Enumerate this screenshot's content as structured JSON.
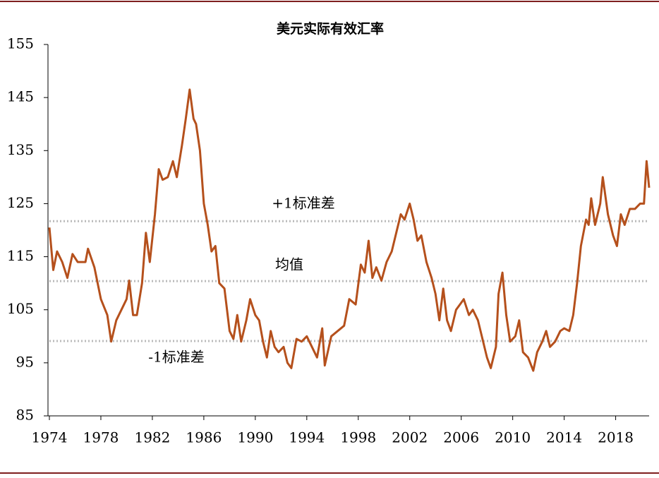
{
  "chart_data": {
    "type": "line",
    "title": "美元实际有效汇率",
    "x": [
      1974.0,
      1974.3,
      1974.6,
      1975.0,
      1975.4,
      1975.8,
      1976.2,
      1976.8,
      1977.0,
      1977.5,
      1978.0,
      1978.5,
      1978.8,
      1979.2,
      1979.6,
      1980.0,
      1980.2,
      1980.5,
      1980.8,
      1981.2,
      1981.5,
      1981.8,
      1982.2,
      1982.5,
      1982.8,
      1983.2,
      1983.6,
      1983.9,
      1984.3,
      1984.6,
      1984.9,
      1985.2,
      1985.4,
      1985.7,
      1986.0,
      1986.3,
      1986.6,
      1986.9,
      1987.2,
      1987.6,
      1988.0,
      1988.3,
      1988.6,
      1988.9,
      1989.3,
      1989.6,
      1990.0,
      1990.3,
      1990.6,
      1990.9,
      1991.2,
      1991.5,
      1991.8,
      1992.2,
      1992.5,
      1992.8,
      1993.2,
      1993.6,
      1994.0,
      1994.4,
      1994.8,
      1995.2,
      1995.4,
      1995.9,
      1996.4,
      1996.9,
      1997.3,
      1997.8,
      1998.2,
      1998.5,
      1998.8,
      1999.1,
      1999.4,
      1999.8,
      2000.2,
      2000.6,
      2000.9,
      2001.3,
      2001.6,
      2002.0,
      2002.3,
      2002.6,
      2002.9,
      2003.3,
      2003.7,
      2004.0,
      2004.3,
      2004.6,
      2004.9,
      2005.2,
      2005.6,
      2005.9,
      2006.2,
      2006.6,
      2006.9,
      2007.3,
      2007.6,
      2008.0,
      2008.3,
      2008.7,
      2008.9,
      2009.2,
      2009.5,
      2009.8,
      2010.2,
      2010.5,
      2010.8,
      2011.2,
      2011.6,
      2011.9,
      2012.3,
      2012.6,
      2012.9,
      2013.3,
      2013.7,
      2014.0,
      2014.4,
      2014.7,
      2015.0,
      2015.3,
      2015.7,
      2015.9,
      2016.1,
      2016.4,
      2016.8,
      2017.0,
      2017.4,
      2017.8,
      2018.1,
      2018.4,
      2018.7,
      2019.1,
      2019.5,
      2019.9,
      2020.2,
      2020.4,
      2020.6
    ],
    "series": [
      {
        "color": "#b5501c",
        "values": [
          120.5,
          112.5,
          116,
          114,
          111,
          115.5,
          114,
          114,
          116.5,
          113,
          107,
          104,
          99,
          103,
          105,
          107,
          110.5,
          104,
          104,
          110,
          119.5,
          114,
          123,
          131.5,
          129.5,
          130,
          133,
          130,
          136,
          141,
          146.5,
          141,
          140,
          135,
          125,
          121,
          116,
          117,
          110,
          109,
          101,
          99.5,
          104,
          99,
          103,
          107,
          104,
          103,
          99,
          96,
          101,
          98,
          97,
          98,
          95,
          94,
          99.5,
          99,
          100,
          98,
          96,
          101.5,
          94.5,
          100,
          101,
          102,
          107,
          106,
          113.5,
          112,
          118,
          111,
          113,
          110.5,
          114,
          116,
          119,
          123,
          122,
          125,
          122,
          118,
          119,
          114,
          111,
          108,
          103,
          109,
          103,
          101,
          105,
          106,
          107,
          104,
          105,
          103,
          100,
          96,
          94,
          98,
          108,
          112,
          104,
          99,
          100,
          103,
          97,
          96,
          93.5,
          97,
          99,
          101,
          98,
          99,
          101,
          101.5,
          101,
          104,
          110,
          117,
          122,
          121,
          126,
          121,
          125,
          130,
          123,
          119,
          117,
          123,
          121,
          124,
          124,
          125,
          125,
          133,
          128
        ]
      }
    ],
    "reference_lines": [
      {
        "label": "+1标准差",
        "value": 121.7
      },
      {
        "label": "均值",
        "value": 110.4
      },
      {
        "label": "-1标准差",
        "value": 99.1
      }
    ],
    "xlim": [
      1974,
      2020.6
    ],
    "xticks": [
      1974,
      1978,
      1982,
      1986,
      1990,
      1994,
      1998,
      2002,
      2006,
      2010,
      2014,
      2018
    ],
    "ylim": [
      85,
      155
    ],
    "yticks": [
      85,
      95,
      105,
      115,
      125,
      135,
      145,
      155
    ]
  }
}
